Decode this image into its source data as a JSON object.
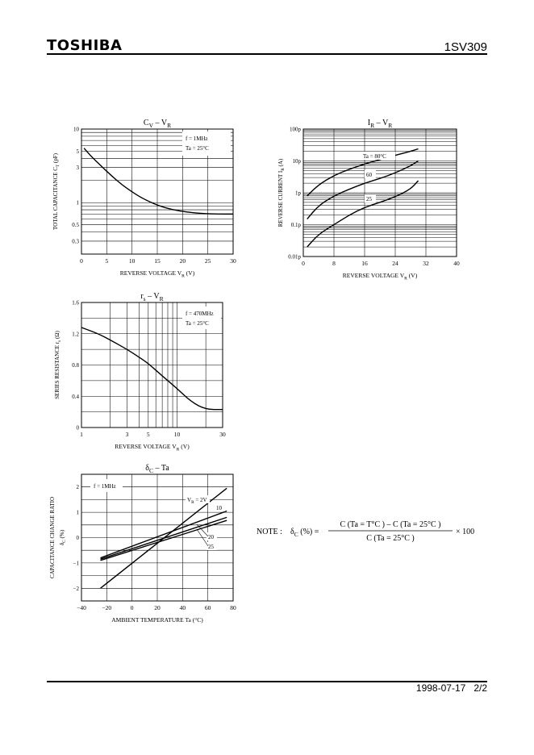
{
  "header": {
    "brand": "TOSHIBA",
    "part_number": "1SV309"
  },
  "footer": {
    "date": "1998-07-17",
    "page": "2/2"
  },
  "note": {
    "prefix": "NOTE :",
    "symbol": "δ",
    "sub": "C",
    "unit": "(%)",
    "equals": "=",
    "numerator": "C (Ta = T°C )  –  C (Ta = 25°C )",
    "denominator": "C (Ta = 25°C )",
    "multiplier": "× 100"
  },
  "chart_data": [
    {
      "type": "line",
      "title": {
        "main": "C",
        "sub1": "V",
        "dash": "–",
        "main2": "V",
        "sub2": "R"
      },
      "xlabel": "REVERSE VOLTAGE  V",
      "xlabel_sub": "R",
      "xlabel_unit": "(V)",
      "ylabel": "TOTAL CAPACITANCE   C",
      "ylabel_sub": "T",
      "ylabel_unit": "(pF)",
      "x_ticks": [
        "0",
        "5",
        "10",
        "15",
        "20",
        "25",
        "30"
      ],
      "y_ticks": [
        "0.3",
        "0.5",
        "1",
        "3",
        "5",
        "10"
      ],
      "xlim": [
        0,
        30
      ],
      "ylim": [
        0.2,
        10
      ],
      "yscale": "log",
      "conditions": [
        "f = 1MHz",
        "Ta = 25°C"
      ],
      "series": [
        {
          "x": [
            0.5,
            2,
            4,
            6,
            8,
            10,
            12,
            15,
            18,
            21,
            24,
            27,
            30
          ],
          "y": [
            5.5,
            4.2,
            3.1,
            2.3,
            1.75,
            1.4,
            1.15,
            0.92,
            0.8,
            0.74,
            0.71,
            0.7,
            0.7
          ]
        }
      ]
    },
    {
      "type": "line",
      "title": {
        "main": "I",
        "sub1": "R",
        "dash": "–",
        "main2": "V",
        "sub2": "R"
      },
      "xlabel": "REVERSE VOLTAGE   V",
      "xlabel_sub": "R",
      "xlabel_unit": "(V)",
      "ylabel": "REVERSE CURRENT   I",
      "ylabel_sub": "R",
      "ylabel_unit": "(A)",
      "x_ticks": [
        "0",
        "8",
        "16",
        "24",
        "32",
        "40"
      ],
      "y_ticks": [
        "0.01p",
        "0.1p",
        "1p",
        "10p",
        "100p"
      ],
      "xlim": [
        0,
        40
      ],
      "ylim": [
        0.01,
        100
      ],
      "yscale": "log",
      "series": [
        {
          "name": "Ta = 80°C",
          "x": [
            1,
            4,
            8,
            12,
            16,
            20,
            24,
            28,
            30
          ],
          "y": [
            0.8,
            1.8,
            3.5,
            5.5,
            8,
            11,
            15,
            20,
            24
          ]
        },
        {
          "name": "60",
          "x": [
            1,
            4,
            8,
            12,
            16,
            20,
            24,
            28,
            30
          ],
          "y": [
            0.15,
            0.4,
            0.8,
            1.3,
            2,
            2.8,
            4.2,
            7,
            10
          ]
        },
        {
          "name": "25",
          "x": [
            1,
            4,
            8,
            12,
            16,
            20,
            24,
            28,
            30
          ],
          "y": [
            0.02,
            0.05,
            0.1,
            0.2,
            0.35,
            0.5,
            0.75,
            1.3,
            2.4
          ]
        }
      ]
    },
    {
      "type": "line",
      "title": {
        "main": "r",
        "sub1": "s",
        "dash": "–",
        "main2": "V",
        "sub2": "R"
      },
      "xlabel": "REVERSE VOLTAGE   V",
      "xlabel_sub": "R",
      "xlabel_unit": "(V)",
      "ylabel": "SERIES RESISTANCE   r",
      "ylabel_sub": "s",
      "ylabel_unit": "(Ω)",
      "x_ticks": [
        "1",
        "3",
        "5",
        "10",
        "30"
      ],
      "y_ticks": [
        "0",
        "0.4",
        "0.8",
        "1.2",
        "1.6"
      ],
      "xlim": [
        1,
        30
      ],
      "ylim": [
        0,
        1.6
      ],
      "xscale": "log",
      "conditions": [
        "f = 470MHz",
        "Ta = 25°C"
      ],
      "series": [
        {
          "x": [
            1,
            1.5,
            2,
            3,
            4,
            5,
            7,
            10,
            14,
            20,
            30
          ],
          "y": [
            1.28,
            1.2,
            1.12,
            1.0,
            0.9,
            0.82,
            0.66,
            0.5,
            0.33,
            0.23,
            0.23
          ]
        }
      ]
    },
    {
      "type": "line",
      "title": {
        "main": "δ",
        "sub1": "C",
        "dash": "–",
        "main2": "Ta",
        "sub2": ""
      },
      "xlabel": "AMBIENT TEMPERATURE   Ta   (°C)",
      "ylabel": "CAPACITANCE  CHANGE  RATIO",
      "ylabel2": "δ",
      "ylabel2_sub": "C",
      "ylabel2_unit": "(%)",
      "x_ticks": [
        "−40",
        "−20",
        "0",
        "20",
        "40",
        "60",
        "80"
      ],
      "y_ticks": [
        "−2",
        "−1",
        "0",
        "1",
        "2"
      ],
      "xlim": [
        -40,
        80
      ],
      "ylim": [
        -2.5,
        2.5
      ],
      "conditions": [
        "f = 1MHz"
      ],
      "series": [
        {
          "name": "V",
          "name_sub": "R",
          "name_rest": " = 2V",
          "x": [
            -25,
            75
          ],
          "y": [
            -2.0,
            1.95
          ]
        },
        {
          "name": "10",
          "x": [
            -25,
            75
          ],
          "y": [
            -0.8,
            1.05
          ]
        },
        {
          "name": "20",
          "x": [
            -25,
            75
          ],
          "y": [
            -0.85,
            0.8
          ]
        },
        {
          "name": "25",
          "x": [
            -25,
            75
          ],
          "y": [
            -0.9,
            0.68
          ]
        }
      ]
    }
  ]
}
